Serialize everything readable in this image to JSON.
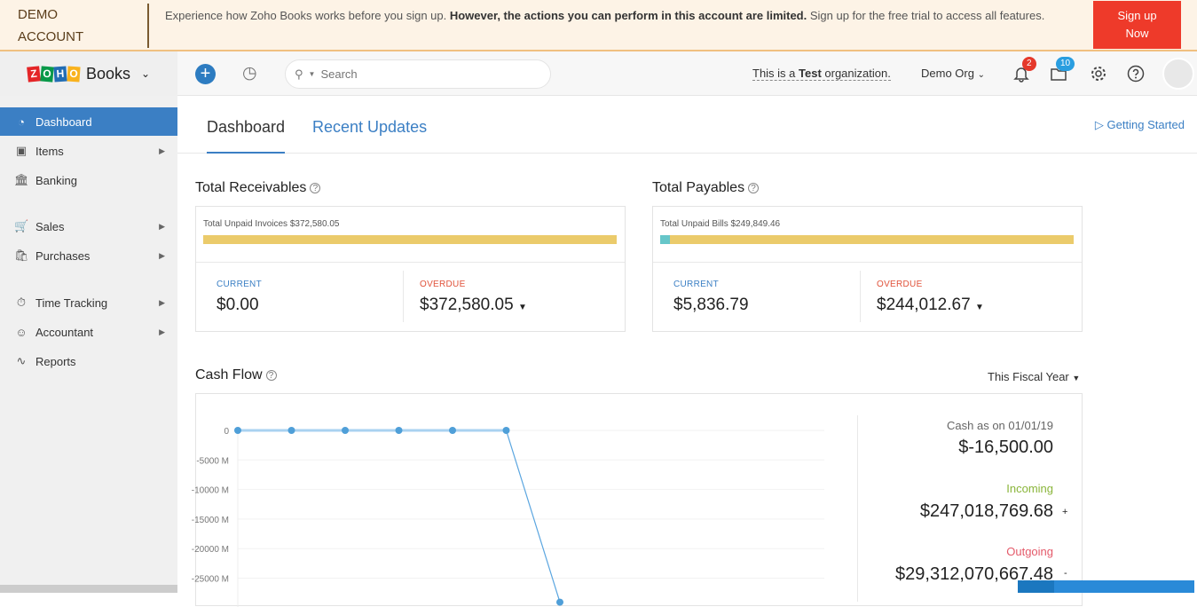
{
  "banner": {
    "label_line1": "DEMO",
    "label_line2": "ACCOUNT",
    "message_pre": "Experience how Zoho Books works before you sign up. ",
    "message_bold": "However, the actions you can perform in this account are limited.",
    "message_post": " Sign up for the free trial to access all features.",
    "signup_line1": "Sign up",
    "signup_line2": "Now",
    "colors": {
      "background": "#fdf3e6",
      "signup": "#ee3a2a"
    }
  },
  "header": {
    "logo_letters": [
      "Z",
      "O",
      "H",
      "O"
    ],
    "product": "Books",
    "search_placeholder": "Search",
    "test_pre": "This is a ",
    "test_bold": "Test",
    "test_post": " organization.",
    "org": "Demo Org",
    "notifications": "2",
    "updates": "10",
    "icons": [
      "plus-icon",
      "history-icon",
      "search-icon",
      "bell-icon",
      "folder-icon",
      "gear-icon",
      "help-icon",
      "avatar"
    ]
  },
  "sidebar": {
    "items": [
      {
        "label": "Dashboard",
        "icon": "dashboard-icon",
        "active": true
      },
      {
        "label": "Items",
        "icon": "basket-icon",
        "arrow": true
      },
      {
        "label": "Banking",
        "icon": "bank-icon"
      },
      {
        "label": "Sales",
        "icon": "cart-icon",
        "arrow": true
      },
      {
        "label": "Purchases",
        "icon": "bag-icon",
        "arrow": true
      },
      {
        "label": "Time Tracking",
        "icon": "timer-icon",
        "arrow": true
      },
      {
        "label": "Accountant",
        "icon": "person-icon",
        "arrow": true
      },
      {
        "label": "Reports",
        "icon": "chart-icon"
      }
    ],
    "accent": "#3b7fc4"
  },
  "tabs": [
    {
      "label": "Dashboard",
      "active": true
    },
    {
      "label": "Recent Updates"
    }
  ],
  "getting_started": "Getting Started",
  "receivables": {
    "title": "Total Receivables",
    "unpaid": "Total Unpaid Invoices $372,580.05",
    "current_label": "CURRENT",
    "current": "$0.00",
    "overdue_label": "OVERDUE",
    "overdue": "$372,580.05",
    "current_fraction": 0
  },
  "payables": {
    "title": "Total Payables",
    "unpaid": "Total Unpaid Bills $249,849.46",
    "current_label": "CURRENT",
    "current": "$5,836.79",
    "overdue_label": "OVERDUE",
    "overdue": "$244,012.67",
    "current_fraction": 0.0234
  },
  "cashflow": {
    "title": "Cash Flow",
    "period": "This Fiscal Year",
    "cash_label": "Cash as on 01/01/19",
    "cash": "$-16,500.00",
    "incoming_label": "Incoming",
    "incoming": "$247,018,769.68",
    "incoming_sign": "+",
    "outgoing_label": "Outgoing",
    "outgoing": "$29,312,070,667.48",
    "outgoing_sign": "-"
  },
  "chart_data": {
    "type": "line",
    "y_unit": "M",
    "y_ticks": [
      0,
      -5000,
      -10000,
      -15000,
      -20000,
      -25000
    ],
    "y_tick_labels": [
      "0",
      "-5000 M",
      "-10000 M",
      "-15000 M",
      "-20000 M",
      "-25000 M"
    ],
    "values": [
      0,
      0,
      0,
      0,
      0,
      0,
      -29065
    ],
    "grid": true,
    "color": "#5aa5e0"
  }
}
